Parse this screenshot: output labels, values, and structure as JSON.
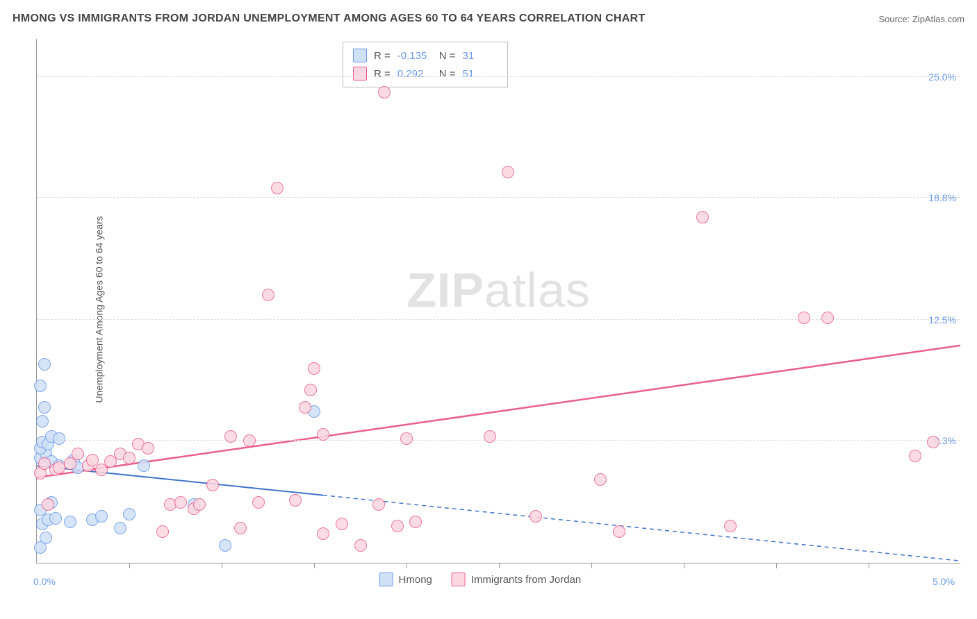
{
  "header": {
    "title": "HMONG VS IMMIGRANTS FROM JORDAN UNEMPLOYMENT AMONG AGES 60 TO 64 YEARS CORRELATION CHART",
    "source": "Source: ZipAtlas.com"
  },
  "y_axis": {
    "label": "Unemployment Among Ages 60 to 64 years"
  },
  "watermark": {
    "zip": "ZIP",
    "atlas": "atlas"
  },
  "chart": {
    "type": "scatter",
    "background_color": "#ffffff",
    "grid_color": "#dddddd",
    "axis_color": "#999999",
    "xlim": [
      0.0,
      5.0
    ],
    "ylim": [
      0.0,
      27.0
    ],
    "y_ticks": [
      {
        "v": 6.3,
        "label": "6.3%"
      },
      {
        "v": 12.5,
        "label": "12.5%"
      },
      {
        "v": 18.8,
        "label": "18.8%"
      },
      {
        "v": 25.0,
        "label": "25.0%"
      }
    ],
    "x_ticks": [
      0.5,
      1.0,
      1.5,
      2.0,
      2.5,
      3.0,
      3.5,
      4.0,
      4.5
    ],
    "x_origin_label": "0.0%",
    "x_end_label": "5.0%",
    "point_radius": 9,
    "point_stroke_width": 1.5,
    "series": [
      {
        "name": "Hmong",
        "fill": "#cfe0f7",
        "stroke": "#6b9ae8",
        "r_value": "-0.135",
        "n_value": "31",
        "trend": {
          "y_at_x0": 5.0,
          "y_at_x5": 0.1,
          "solid_until_x": 1.55,
          "line_color": "#3f74c9",
          "line_width": 2
        },
        "points": [
          [
            0.02,
            0.8
          ],
          [
            0.05,
            1.3
          ],
          [
            0.03,
            2.0
          ],
          [
            0.06,
            2.2
          ],
          [
            0.02,
            2.7
          ],
          [
            0.1,
            2.3
          ],
          [
            0.18,
            2.1
          ],
          [
            0.08,
            3.1
          ],
          [
            0.02,
            5.4
          ],
          [
            0.05,
            5.6
          ],
          [
            0.02,
            5.9
          ],
          [
            0.03,
            6.2
          ],
          [
            0.08,
            5.2
          ],
          [
            0.12,
            5.0
          ],
          [
            0.06,
            6.1
          ],
          [
            0.08,
            6.5
          ],
          [
            0.03,
            7.3
          ],
          [
            0.04,
            8.0
          ],
          [
            0.02,
            9.1
          ],
          [
            0.04,
            10.2
          ],
          [
            0.12,
            6.4
          ],
          [
            0.2,
            5.3
          ],
          [
            0.22,
            4.9
          ],
          [
            0.3,
            2.2
          ],
          [
            0.35,
            2.4
          ],
          [
            0.45,
            1.8
          ],
          [
            0.5,
            2.5
          ],
          [
            0.58,
            5.0
          ],
          [
            0.85,
            3.0
          ],
          [
            1.02,
            0.9
          ],
          [
            1.5,
            7.8
          ]
        ]
      },
      {
        "name": "Immigrants from Jordan",
        "fill": "#fbd7e1",
        "stroke": "#ea5e8a",
        "r_value": "0.292",
        "n_value": "51",
        "trend": {
          "y_at_x0": 4.4,
          "y_at_x5": 11.2,
          "solid_until_x": 5.0,
          "line_color": "#ea5e8a",
          "line_width": 2.5
        },
        "points": [
          [
            0.02,
            4.6
          ],
          [
            0.04,
            5.1
          ],
          [
            0.06,
            3.0
          ],
          [
            0.1,
            4.8
          ],
          [
            0.12,
            4.9
          ],
          [
            0.18,
            5.1
          ],
          [
            0.22,
            5.6
          ],
          [
            0.28,
            5.0
          ],
          [
            0.3,
            5.3
          ],
          [
            0.35,
            4.8
          ],
          [
            0.4,
            5.2
          ],
          [
            0.45,
            5.6
          ],
          [
            0.5,
            5.4
          ],
          [
            0.55,
            6.1
          ],
          [
            0.6,
            5.9
          ],
          [
            0.68,
            1.6
          ],
          [
            0.72,
            3.0
          ],
          [
            0.78,
            3.1
          ],
          [
            0.85,
            2.8
          ],
          [
            0.88,
            3.0
          ],
          [
            0.95,
            4.0
          ],
          [
            1.05,
            6.5
          ],
          [
            1.1,
            1.8
          ],
          [
            1.15,
            6.3
          ],
          [
            1.2,
            3.1
          ],
          [
            1.25,
            13.8
          ],
          [
            1.3,
            19.3
          ],
          [
            1.4,
            3.2
          ],
          [
            1.45,
            8.0
          ],
          [
            1.48,
            8.9
          ],
          [
            1.5,
            10.0
          ],
          [
            1.55,
            1.5
          ],
          [
            1.55,
            6.6
          ],
          [
            1.65,
            2.0
          ],
          [
            1.75,
            0.9
          ],
          [
            1.85,
            3.0
          ],
          [
            1.88,
            24.2
          ],
          [
            1.95,
            1.9
          ],
          [
            2.0,
            6.4
          ],
          [
            2.05,
            2.1
          ],
          [
            2.45,
            6.5
          ],
          [
            2.55,
            20.1
          ],
          [
            2.7,
            2.4
          ],
          [
            3.05,
            4.3
          ],
          [
            3.15,
            1.6
          ],
          [
            3.6,
            17.8
          ],
          [
            3.75,
            1.9
          ],
          [
            4.15,
            12.6
          ],
          [
            4.28,
            12.6
          ],
          [
            4.75,
            5.5
          ],
          [
            4.85,
            6.2
          ]
        ]
      }
    ]
  },
  "legend": {
    "r_prefix": "R =",
    "n_prefix": "N ="
  }
}
